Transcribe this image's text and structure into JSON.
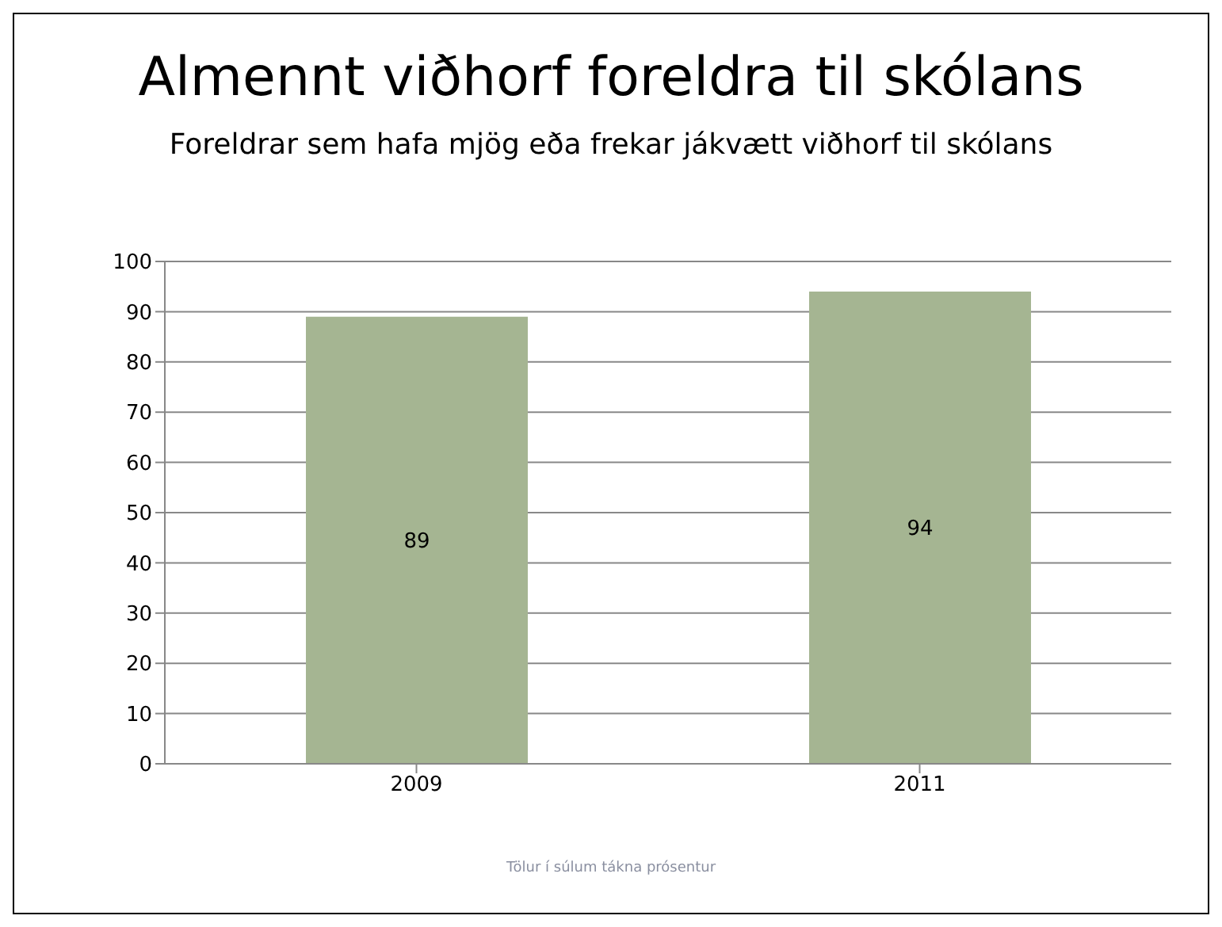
{
  "chart_data": {
    "type": "bar",
    "title": "Almennt viðhorf foreldra til skólans",
    "subtitle": "Foreldrar sem hafa mjög eða frekar jákvætt viðhorf til skólans",
    "categories": [
      "2009",
      "2011"
    ],
    "values": [
      89,
      94
    ],
    "color": "#a5b592",
    "ylim": [
      0,
      100
    ],
    "yticks": [
      0,
      10,
      20,
      30,
      40,
      50,
      60,
      70,
      80,
      90,
      100
    ],
    "grid": "y",
    "data_labels": true,
    "annotations": [
      "Tölur í súlum tákna prósentur"
    ]
  }
}
